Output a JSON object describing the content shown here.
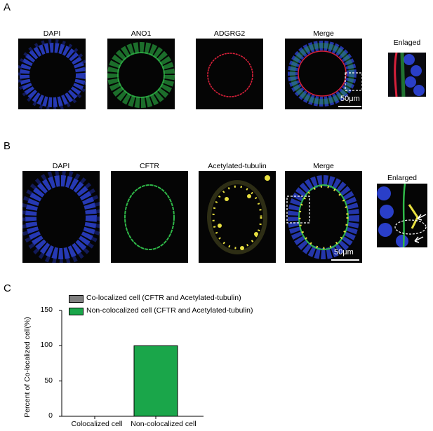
{
  "figure": {
    "panel_a": {
      "letter": "A",
      "labels": [
        "DAPI",
        "ANO1",
        "ADGRG2",
        "Merge",
        "Enlaged"
      ],
      "scale": "50μm"
    },
    "panel_b": {
      "letter": "B",
      "labels": [
        "DAPI",
        "CFTR",
        "Acetylated-tubulin",
        "Merge",
        "Enlarged"
      ],
      "scale": "50μm"
    },
    "panel_c": {
      "letter": "C"
    }
  },
  "colors": {
    "dapi": "#2a3fc8",
    "green": "#2fb848",
    "red": "#d8203a",
    "yellow": "#e8e040",
    "bar_gray": "#808080",
    "bar_green": "#1aa64a"
  },
  "chart_data": {
    "type": "bar",
    "categories": [
      "Colocalized cell",
      "Non-colocalized cell"
    ],
    "values": [
      0,
      100
    ],
    "ylabel": "Percent of Co-localized cell(%)",
    "ylim": [
      0,
      150
    ],
    "yticks": [
      0,
      50,
      100,
      150
    ],
    "legend": [
      {
        "label": "Co-localized cell (CFTR and Acetylated-tubulin)",
        "color": "#808080"
      },
      {
        "label": "Non-colocalized cell (CFTR and Acetylated-tubulin)",
        "color": "#1aa64a"
      }
    ],
    "legend_position": "top-left"
  }
}
